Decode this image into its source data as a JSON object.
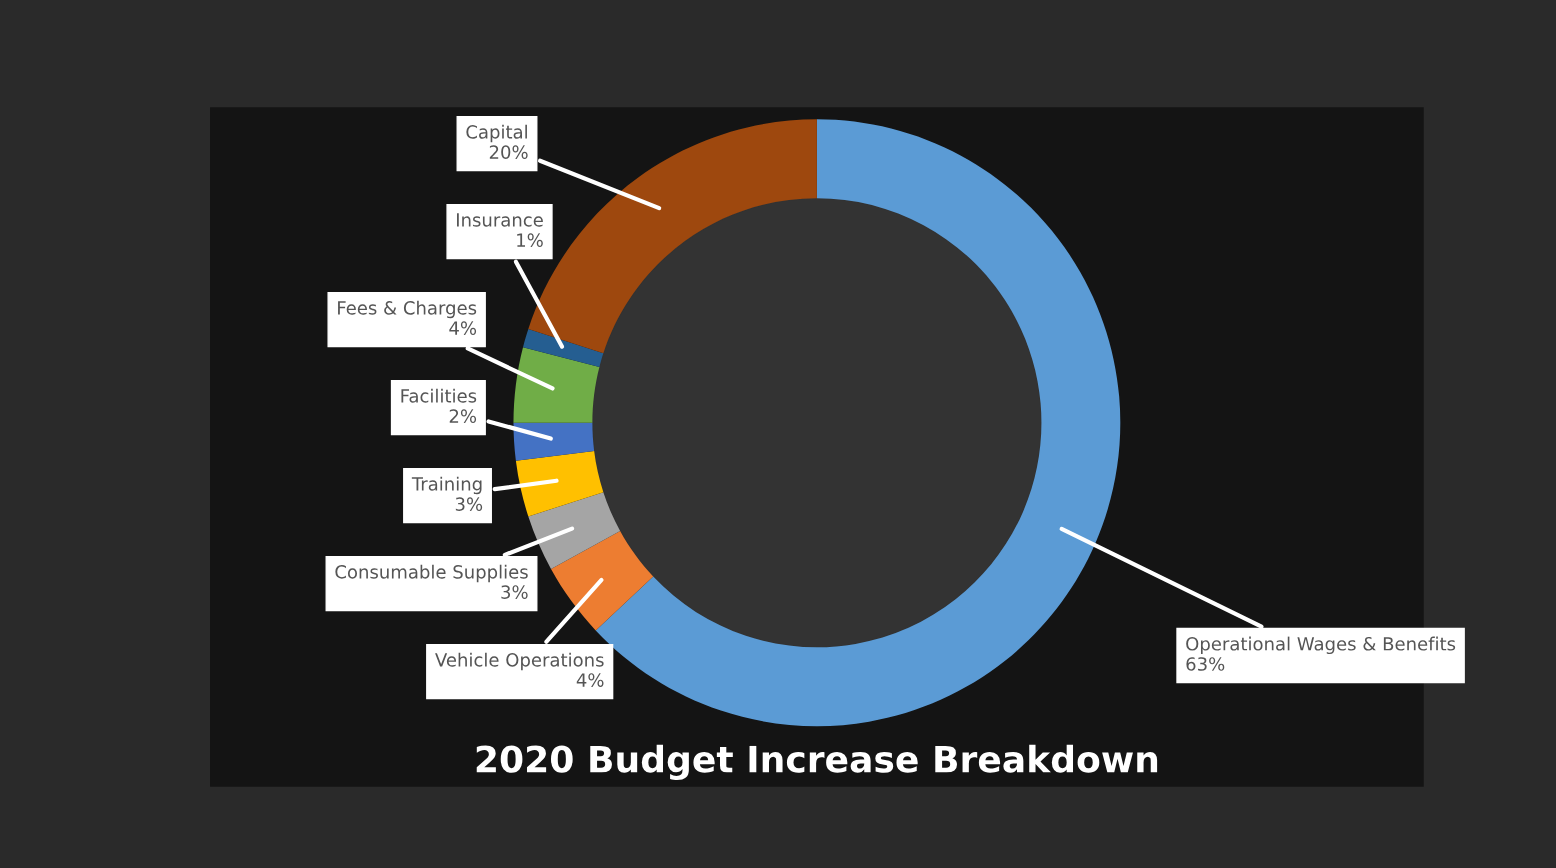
{
  "chart_data": {
    "type": "donut",
    "title": "2020 Budget Increase Breakdown",
    "categories": [
      "Operational Wages & Benefits",
      "Vehicle Operations",
      "Consumable Supplies",
      "Training",
      "Facilities",
      "Fees & Charges",
      "Insurance",
      "Capital"
    ],
    "values": [
      63,
      4,
      3,
      3,
      2,
      4,
      1,
      20
    ],
    "colors": [
      "#5b9bd5",
      "#ed7d31",
      "#a5a5a5",
      "#ffc000",
      "#4472c4",
      "#70ad47",
      "#255e91",
      "#9e480e"
    ],
    "value_labels": [
      "63%",
      "4%",
      "3%",
      "3%",
      "2%",
      "4%",
      "1%",
      "20%"
    ],
    "legend": false
  }
}
